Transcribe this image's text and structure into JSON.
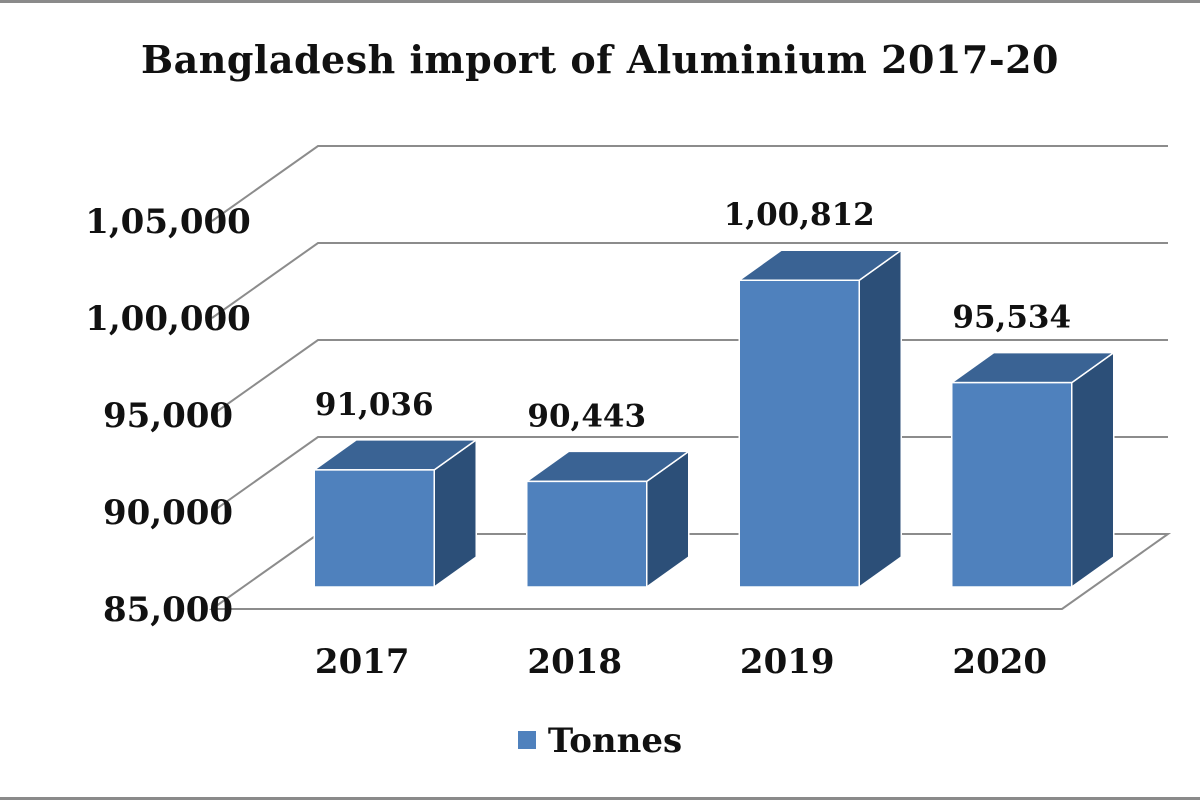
{
  "chart_data": {
    "type": "bar",
    "title": "Bangladesh import of Aluminium 2017-20",
    "categories": [
      "2017",
      "2018",
      "2019",
      "2020"
    ],
    "series": [
      {
        "name": "Tonnes",
        "values": [
          91036,
          90443,
          100812,
          95534
        ],
        "data_labels": [
          "91,036",
          "90,443",
          "1,00,812",
          "95,534"
        ]
      }
    ],
    "ylim": [
      85000,
      105000
    ],
    "y_ticks": [
      85000,
      90000,
      95000,
      100000,
      105000
    ],
    "y_tick_labels": [
      "85,000",
      "90,000",
      "95,000",
      "1,00,000",
      "1,05,000"
    ],
    "xlabel": "",
    "ylabel": "",
    "grid": true,
    "legend_position": "bottom",
    "style": "3d-column",
    "colors": {
      "bar_front": "#4f81bd",
      "bar_top": "#3a6394",
      "bar_side": "#2c4f78",
      "bar_edge": "#ffffff",
      "grid": "#8c8c8c"
    }
  }
}
